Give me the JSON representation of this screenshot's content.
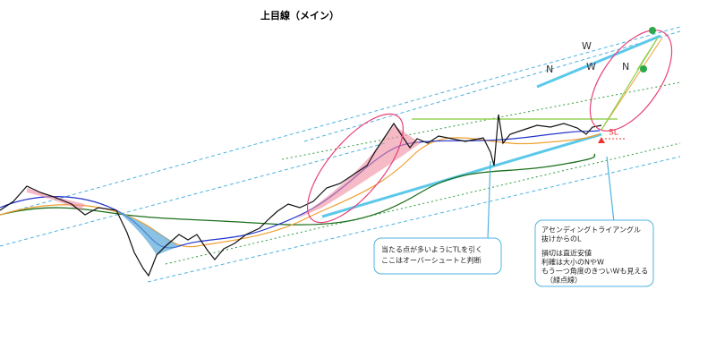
{
  "header": {
    "title": "上目線（メイン）"
  },
  "labels": [
    "W",
    "N",
    "W",
    "N",
    "SL"
  ],
  "callouts": [
    {
      "lines": [
        "当たる点が多いようにTLを引く",
        "ここはオーバーシュートと判断"
      ]
    },
    {
      "lines": [
        "アセンディングトライアングル",
        "抜けからのL",
        "損切は直近安値",
        "利確は大小のNやW",
        "もう一つ角度のきついWも見える",
        "（緑点線）"
      ]
    }
  ]
}
